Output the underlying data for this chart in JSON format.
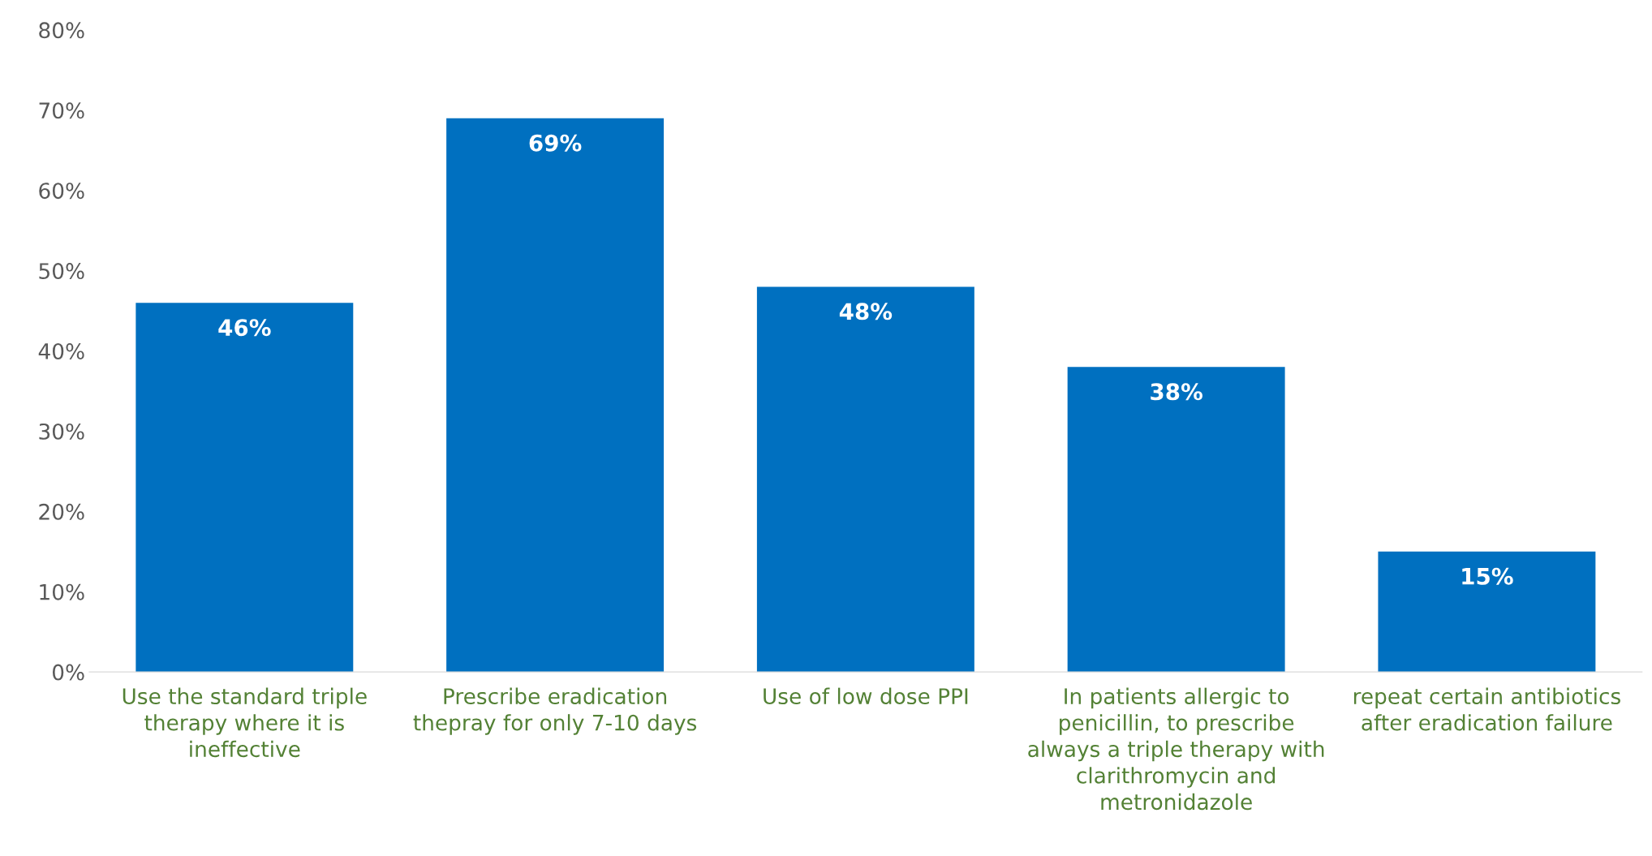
{
  "chart_data": {
    "type": "bar",
    "categories": [
      "Use the standard triple\ntherapy where it is\nineffective",
      "Prescribe eradication\nthepray for only 7-10 days",
      "Use of low dose PPI",
      "In patients allergic to\npenicillin, to prescribe\nalways a triple therapy with\nclarithromycin and\nmetronidazole",
      "repeat certain antibiotics\nafter eradication failure"
    ],
    "values": [
      46,
      69,
      48,
      38,
      15
    ],
    "value_labels": [
      "46%",
      "69%",
      "48%",
      "38%",
      "15%"
    ],
    "color": "#0070c0",
    "ylim": [
      0,
      80
    ],
    "yticks": [
      {
        "value": 0,
        "label": "0%"
      },
      {
        "value": 10,
        "label": "10%"
      },
      {
        "value": 20,
        "label": "20%"
      },
      {
        "value": 30,
        "label": "30%"
      },
      {
        "value": 40,
        "label": "40%"
      },
      {
        "value": 50,
        "label": "50%"
      },
      {
        "value": 60,
        "label": "60%"
      },
      {
        "value": 70,
        "label": "70%"
      },
      {
        "value": 80,
        "label": "80%"
      }
    ],
    "grid": false,
    "legend": false
  }
}
